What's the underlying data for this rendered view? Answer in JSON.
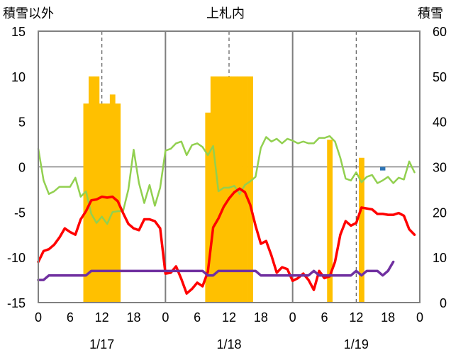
{
  "chart_data": {
    "type": "bar+line",
    "title": "上札内",
    "left_axis_label": "積雪以外",
    "right_axis_label": "積雪",
    "left_ylim": [
      -15,
      15
    ],
    "left_ticks": [
      15,
      10,
      5,
      0,
      -5,
      -10,
      -15
    ],
    "right_ylim": [
      0,
      60
    ],
    "right_ticks": [
      60,
      50,
      40,
      30,
      20,
      10,
      0
    ],
    "x_range_hours": [
      0,
      72
    ],
    "x_tick_labels": [
      "0",
      "6",
      "12",
      "18",
      "0",
      "6",
      "12",
      "18",
      "0",
      "6",
      "12",
      "18",
      "0"
    ],
    "x_tick_hours": [
      0,
      6,
      12,
      18,
      24,
      30,
      36,
      42,
      48,
      54,
      60,
      66,
      72
    ],
    "day_labels": [
      "1/17",
      "1/18",
      "1/19"
    ],
    "day_label_hours": [
      12,
      36,
      60
    ],
    "day_separator_hours": [
      24,
      48
    ],
    "gridline_hours": [
      12,
      36,
      60
    ],
    "snow_depth": {
      "axis": "right",
      "color": "#FFC000",
      "bars": [
        {
          "hour": 9,
          "value": 44
        },
        {
          "hour": 10,
          "value": 50
        },
        {
          "hour": 11,
          "value": 50
        },
        {
          "hour": 12,
          "value": 44
        },
        {
          "hour": 13,
          "value": 44
        },
        {
          "hour": 14,
          "value": 46
        },
        {
          "hour": 15,
          "value": 44
        },
        {
          "hour": 32,
          "value": 42
        },
        {
          "hour": 33,
          "value": 50
        },
        {
          "hour": 34,
          "value": 50
        },
        {
          "hour": 35,
          "value": 50
        },
        {
          "hour": 36,
          "value": 50
        },
        {
          "hour": 37,
          "value": 50
        },
        {
          "hour": 38,
          "value": 50
        },
        {
          "hour": 39,
          "value": 50
        },
        {
          "hour": 40,
          "value": 50
        },
        {
          "hour": 55,
          "value": 36
        },
        {
          "hour": 61,
          "value": 32
        }
      ]
    },
    "extra_bar": {
      "axis": "right",
      "color": "#2E75B6",
      "hour": 65,
      "value": 29.2
    },
    "series": [
      {
        "name": "green",
        "color": "#92D050",
        "values": [
          2,
          -1.5,
          -3,
          -2.7,
          -2.2,
          -2.2,
          -2.2,
          -1.2,
          -3.3,
          -2.7,
          -5.2,
          -6.2,
          -5.5,
          -6.3,
          -5,
          -4.9,
          -4.9,
          -2.5,
          1.9,
          -1.8,
          -4,
          -2,
          -4.3,
          -2.3,
          1.8,
          2,
          2.6,
          2.8,
          1.3,
          2.4,
          2.6,
          2.2,
          1.3,
          2.3,
          -2.7,
          -2.3,
          -2.3,
          -2.1,
          -3,
          -2,
          -1.6,
          -1.1,
          2.1,
          3.3,
          2.8,
          3.1,
          2.6,
          3.1,
          2.9,
          2.6,
          2.8,
          2.6,
          2.6,
          3.2,
          3.2,
          3.4,
          2.8,
          1,
          -1.3,
          -1.5,
          -0.6,
          -1.7,
          -1.1,
          -0.9,
          -1.8,
          -1.5,
          -1.1,
          -1.8,
          -1.2,
          -1.4,
          0.6,
          -0.6
        ]
      },
      {
        "name": "red",
        "color": "#FF0000",
        "values": [
          -10.5,
          -9.3,
          -9.1,
          -8.6,
          -7.8,
          -6.8,
          -7.2,
          -7.5,
          -5.8,
          -4.9,
          -3.7,
          -3.6,
          -3.3,
          -3.4,
          -3.3,
          -3.8,
          -5.1,
          -6.3,
          -6.8,
          -7,
          -5.8,
          -5.8,
          -6,
          -6.8,
          -11.8,
          -11.7,
          -11,
          -12.4,
          -14,
          -13.5,
          -12.8,
          -13.2,
          -11.6,
          -6.7,
          -5.7,
          -4.4,
          -3.5,
          -2.8,
          -2.4,
          -2.8,
          -4.2,
          -6.5,
          -8.5,
          -8.2,
          -9.8,
          -11.7,
          -11.1,
          -11.3,
          -12.6,
          -12.3,
          -11.8,
          -12.5,
          -13.6,
          -11.5,
          -12.3,
          -12.1,
          -10.5,
          -7.5,
          -6,
          -6.5,
          -6.2,
          -4.5,
          -4.6,
          -4.7,
          -5.2,
          -5.2,
          -5.3,
          -5.3,
          -5.1,
          -5.4,
          -6.9,
          -7.5
        ]
      },
      {
        "name": "purple",
        "color": "#7030A0",
        "values": [
          -12.5,
          -12.5,
          -12,
          -12,
          -12,
          -12,
          -12,
          -12,
          -12,
          -12,
          -11.5,
          -11.5,
          -11.5,
          -11.5,
          -11.5,
          -11.5,
          -11.5,
          -11.5,
          -11.5,
          -11.5,
          -11.5,
          -11.5,
          -11.5,
          -11.5,
          -11.5,
          -11.5,
          -11.5,
          -11.5,
          -11.5,
          -11.5,
          -11.5,
          -11.5,
          -12,
          -12,
          -11.5,
          -11.5,
          -11.5,
          -11.5,
          -11.5,
          -11.5,
          -11.5,
          -11.5,
          -12,
          -12,
          -12,
          -12,
          -12,
          -12,
          -12,
          -12,
          -12,
          -12,
          -11.5,
          -12,
          -12,
          -12,
          -12,
          -12,
          -12,
          -12,
          -11.5,
          -12,
          -11.5,
          -11.5,
          -11.5,
          -12,
          -11.5,
          -10.5
        ]
      }
    ]
  }
}
